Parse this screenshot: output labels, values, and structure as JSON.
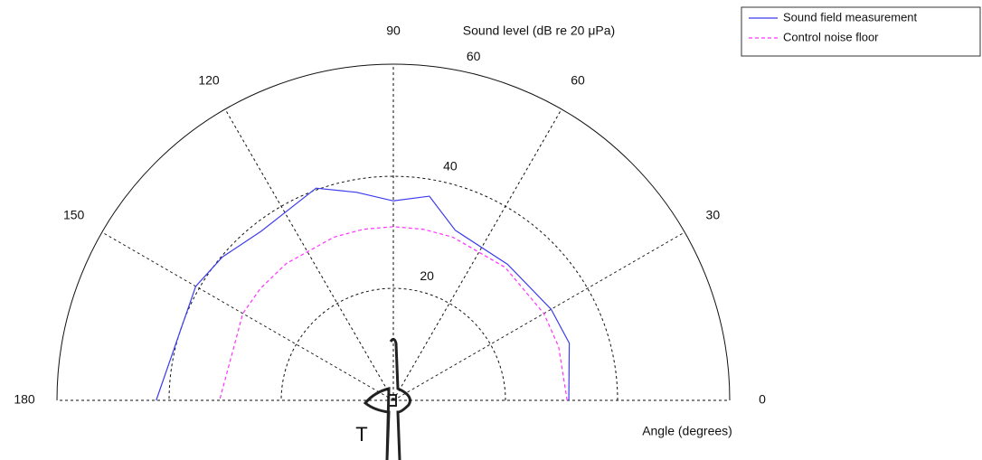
{
  "chart_data": {
    "type": "polar",
    "title": "Sound level (dB re 20 μPa)",
    "xlabel": "Angle (degrees)",
    "annotation": "T",
    "x": [
      0,
      18,
      30,
      50,
      70,
      80,
      90,
      100,
      110,
      128,
      140,
      150,
      180
    ],
    "series": [
      {
        "name": "Sound field measurement",
        "color": "#3b3bef",
        "style": "solid",
        "values": [
          31.3,
          33,
          32.5,
          31.7,
          32.3,
          37,
          35.6,
          37.7,
          40.3,
          38.3,
          39.8,
          40.7,
          42.3
        ]
      },
      {
        "name": "Control noise floor",
        "color": "#ff33ff",
        "style": "dashed",
        "values": [
          31,
          31,
          31,
          31,
          31,
          31,
          31,
          31,
          31,
          31,
          31,
          31,
          31
        ]
      }
    ],
    "xlim": [
      0,
      180
    ],
    "xticks": [
      0,
      30,
      60,
      90,
      120,
      150,
      180
    ],
    "ylim": [
      0,
      60
    ],
    "yticks": [
      20,
      40,
      60
    ],
    "grid": true,
    "legend": "upper right"
  }
}
